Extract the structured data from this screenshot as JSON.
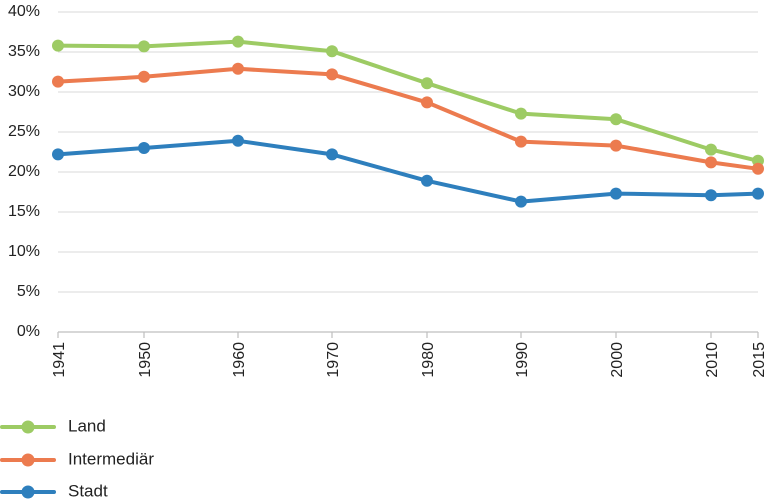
{
  "chart_data": {
    "type": "line",
    "title": "",
    "xlabel": "",
    "ylabel": "",
    "x": [
      1941,
      1950,
      1960,
      1970,
      1980,
      1990,
      2000,
      2010,
      2015
    ],
    "x_tick_labels": [
      "1941",
      "1950",
      "1960",
      "1970",
      "1980",
      "1990",
      "2000",
      "2010",
      "2015"
    ],
    "ylim": [
      0,
      40
    ],
    "y_ticks": [
      0,
      5,
      10,
      15,
      20,
      25,
      30,
      35,
      40
    ],
    "y_tick_labels": [
      "0%",
      "5%",
      "10%",
      "15%",
      "20%",
      "25%",
      "30%",
      "35%",
      "40%"
    ],
    "grid": "horizontal",
    "legend_position": "bottom-left",
    "series": [
      {
        "name": "Land",
        "color": "#9dcb64",
        "values": [
          35.8,
          35.7,
          36.3,
          35.1,
          31.1,
          27.3,
          26.6,
          22.8,
          21.4
        ]
      },
      {
        "name": "Intermediär",
        "color": "#ec7b4f",
        "values": [
          31.3,
          31.9,
          32.9,
          32.2,
          28.7,
          23.8,
          23.3,
          21.2,
          20.4
        ]
      },
      {
        "name": "Stadt",
        "color": "#2e7fbd",
        "values": [
          22.2,
          23.0,
          23.9,
          22.2,
          18.9,
          16.3,
          17.3,
          17.1,
          17.3
        ]
      }
    ]
  }
}
